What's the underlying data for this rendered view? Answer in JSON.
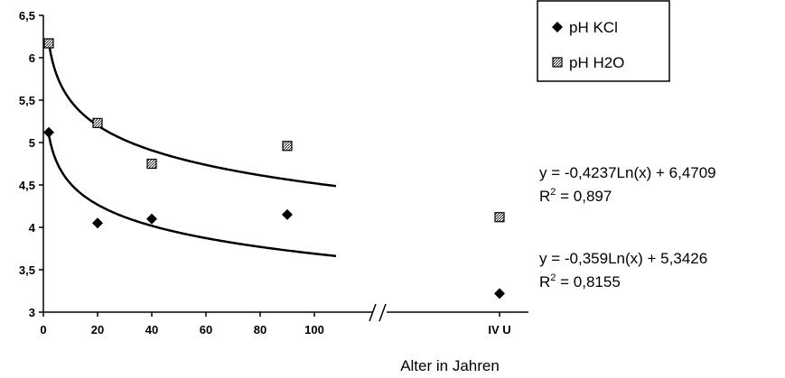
{
  "chart_data": {
    "type": "scatter",
    "xlabel": "Alter in Jahren",
    "xlim": [
      0,
      110
    ],
    "xticks": [
      "0",
      "20",
      "40",
      "60",
      "80",
      "100"
    ],
    "extra_category_label": "IV U",
    "ylim": [
      3,
      6.5
    ],
    "yticks": [
      "3",
      "3,5",
      "4",
      "4,5",
      "5",
      "5,5",
      "6",
      "6,5"
    ],
    "grid": false,
    "legend_position": "top-right",
    "series": [
      {
        "name": "pH KCl",
        "marker": "diamond",
        "color": "#000000",
        "points": [
          [
            2,
            5.12
          ],
          [
            20,
            4.05
          ],
          [
            40,
            4.1
          ],
          [
            90,
            4.15
          ]
        ],
        "extra_category_value": 3.22,
        "trendline": {
          "type": "log",
          "a": -0.359,
          "b": 5.3426,
          "equation": "y = -0,359Ln(x) + 5,3426",
          "r2_prefix": "R",
          "r2_sup": "2",
          "r2_value": " = 0,8155"
        }
      },
      {
        "name": "pH H2O",
        "marker": "hatched-square",
        "color": "#000000",
        "points": [
          [
            2,
            6.17
          ],
          [
            20,
            5.23
          ],
          [
            40,
            4.75
          ],
          [
            90,
            4.96
          ]
        ],
        "extra_category_value": 4.12,
        "trendline": {
          "type": "log",
          "a": -0.4237,
          "b": 6.4709,
          "equation": "y = -0,4237Ln(x) + 6,4709",
          "r2_prefix": "R",
          "r2_sup": "2",
          "r2_value": " = 0,897"
        }
      }
    ]
  }
}
